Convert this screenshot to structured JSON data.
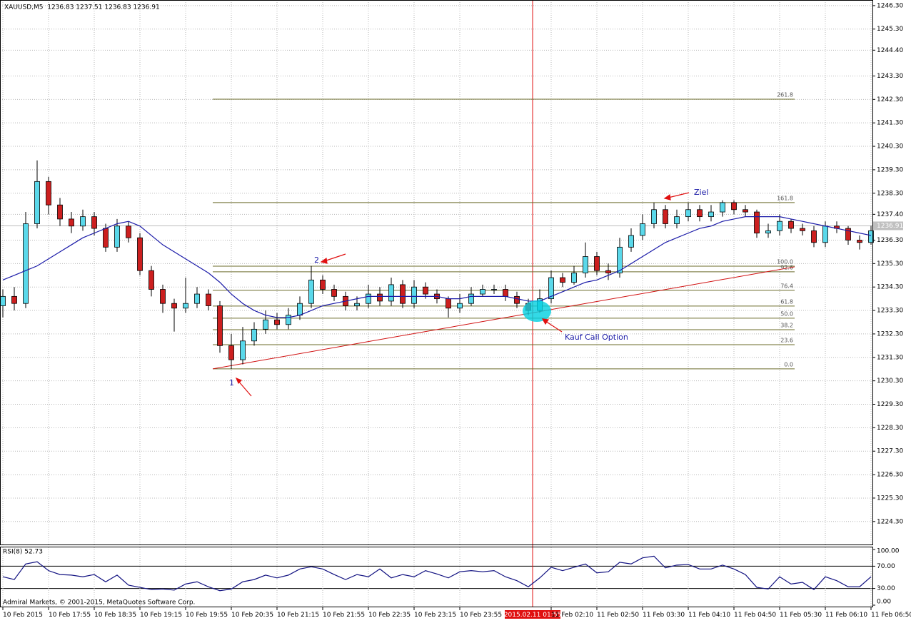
{
  "chart_data": {
    "type": "candlestick",
    "title": "XAUUSD,M5  1236.83 1237.51 1236.83 1236.91",
    "copyright": "Admiral Markets, © 2001-2015, MetaQuotes Software Corp.",
    "categories": [
      "10 Feb 2015",
      null,
      null,
      null,
      "10 Feb 17:55",
      null,
      null,
      null,
      "10 Feb 18:35",
      null,
      null,
      null,
      "10 Feb 19:15",
      null,
      null,
      null,
      "10 Feb 19:55",
      null,
      null,
      null,
      "10 Feb 20:35",
      null,
      null,
      null,
      "10 Feb 21:15",
      null,
      null,
      null,
      "10 Feb 21:55",
      null,
      null,
      null,
      "10 Feb 22:35",
      null,
      null,
      null,
      "10 Feb 23:15",
      null,
      null,
      null,
      "10 Feb 23:55",
      null,
      null,
      null,
      null,
      null,
      "2015.02.11 01:55",
      null,
      "11 Feb 02:10",
      null,
      null,
      null,
      "11 Feb 02:50",
      null,
      null,
      null,
      "11 Feb 03:30",
      null,
      null,
      null,
      "11 Feb 04:10",
      null,
      null,
      null,
      "11 Feb 04:50",
      null,
      null,
      null,
      "11 Feb 05:30",
      null,
      null,
      null,
      "11 Feb 06:10",
      null,
      null,
      null,
      "11 Feb 06:50"
    ],
    "crosshair": "2015.02.11 01:55",
    "open": [
      1233.5,
      1233.9,
      1233.6,
      1237.0,
      1238.8,
      1237.8,
      1237.2,
      1236.9,
      1237.3,
      1236.8,
      1236.0,
      1236.9,
      1236.4,
      1235.0,
      1234.2,
      1233.6,
      1233.4,
      1233.6,
      1234.0,
      1233.5,
      1231.8,
      1231.2,
      1232.0,
      1232.5,
      1232.9,
      1232.7,
      1233.1,
      1233.6,
      1234.6,
      1234.2,
      1233.9,
      1233.5,
      1233.6,
      1234.0,
      1233.7,
      1234.4,
      1233.6,
      1234.3,
      1234.0,
      1233.8,
      1233.4,
      1233.6,
      1234.0,
      1234.2,
      1234.2,
      1233.9,
      1233.6,
      1233.3,
      1233.8,
      1234.7,
      1234.5,
      1234.9,
      1235.6,
      1235.0,
      1234.9,
      1236.0,
      1236.5,
      1237.0,
      1237.6,
      1237.0,
      1237.3,
      1237.6,
      1237.3,
      1237.5,
      1237.9,
      1237.6,
      1237.5,
      1236.6,
      1236.7,
      1237.1,
      1236.8,
      1236.7,
      1236.2,
      1236.9,
      1236.8,
      1236.3,
      1236.2
    ],
    "high": [
      1234.2,
      1234.3,
      1237.5,
      1239.7,
      1239.0,
      1238.1,
      1237.5,
      1237.6,
      1237.5,
      1237.0,
      1237.2,
      1237.1,
      1236.6,
      1235.2,
      1234.4,
      1233.8,
      1234.7,
      1234.3,
      1234.2,
      1233.7,
      1232.3,
      1232.6,
      1232.8,
      1233.3,
      1233.2,
      1233.4,
      1233.9,
      1235.2,
      1234.8,
      1234.4,
      1234.1,
      1233.9,
      1234.4,
      1234.3,
      1234.7,
      1234.6,
      1234.6,
      1234.5,
      1234.2,
      1233.9,
      1234.0,
      1234.3,
      1234.4,
      1234.4,
      1234.4,
      1234.1,
      1233.8,
      1234.2,
      1235.0,
      1234.9,
      1235.2,
      1236.2,
      1235.8,
      1235.3,
      1236.4,
      1236.8,
      1237.4,
      1237.9,
      1237.8,
      1237.6,
      1237.9,
      1237.8,
      1237.8,
      1238.0,
      1238.0,
      1237.8,
      1237.6,
      1237.0,
      1237.4,
      1237.2,
      1237.0,
      1236.9,
      1237.1,
      1237.1,
      1236.9,
      1236.5,
      1236.9
    ],
    "low": [
      1233.0,
      1233.3,
      1233.4,
      1236.8,
      1237.4,
      1236.9,
      1236.6,
      1236.7,
      1236.5,
      1235.8,
      1235.8,
      1236.2,
      1234.8,
      1233.9,
      1233.2,
      1232.4,
      1233.2,
      1233.4,
      1233.3,
      1231.5,
      1230.8,
      1231.0,
      1231.8,
      1232.3,
      1232.5,
      1232.5,
      1232.9,
      1233.4,
      1234.0,
      1233.7,
      1233.3,
      1233.3,
      1233.4,
      1233.5,
      1233.5,
      1233.4,
      1233.4,
      1233.8,
      1233.6,
      1233.0,
      1233.2,
      1233.5,
      1233.9,
      1234.0,
      1233.7,
      1233.4,
      1233.1,
      1233.2,
      1233.6,
      1234.3,
      1234.4,
      1234.7,
      1234.8,
      1234.6,
      1234.7,
      1235.8,
      1236.3,
      1236.8,
      1236.8,
      1236.8,
      1237.1,
      1237.1,
      1237.1,
      1237.3,
      1237.4,
      1237.3,
      1236.4,
      1236.4,
      1236.5,
      1236.6,
      1236.5,
      1236.0,
      1236.0,
      1236.6,
      1236.1,
      1235.9,
      1236.1
    ],
    "close": [
      1233.9,
      1233.6,
      1237.0,
      1238.8,
      1237.8,
      1237.2,
      1236.9,
      1237.3,
      1236.8,
      1236.0,
      1236.9,
      1236.4,
      1235.0,
      1234.2,
      1233.6,
      1233.4,
      1233.6,
      1234.0,
      1233.5,
      1231.8,
      1231.2,
      1232.0,
      1232.5,
      1232.9,
      1232.7,
      1233.1,
      1233.6,
      1234.6,
      1234.2,
      1233.9,
      1233.5,
      1233.6,
      1234.0,
      1233.7,
      1234.4,
      1233.6,
      1234.3,
      1234.0,
      1233.8,
      1233.4,
      1233.6,
      1234.0,
      1234.2,
      1234.2,
      1233.9,
      1233.6,
      1233.3,
      1233.8,
      1234.7,
      1234.5,
      1234.9,
      1235.6,
      1235.0,
      1234.9,
      1236.0,
      1236.5,
      1237.0,
      1237.6,
      1237.0,
      1237.3,
      1237.6,
      1237.3,
      1237.5,
      1237.9,
      1237.6,
      1237.5,
      1236.6,
      1236.7,
      1237.1,
      1236.8,
      1236.7,
      1236.2,
      1236.9,
      1236.8,
      1236.3,
      1236.2,
      1236.7
    ],
    "up_color": "#5ad8ea",
    "down_color": "#cc1f1f",
    "ma": {
      "color": "#1a1aa8",
      "values": [
        1234.6,
        1234.8,
        1235.0,
        1235.2,
        1235.5,
        1235.8,
        1236.1,
        1236.4,
        1236.6,
        1236.8,
        1237.0,
        1237.1,
        1236.9,
        1236.5,
        1236.1,
        1235.8,
        1235.5,
        1235.2,
        1234.9,
        1234.5,
        1234.0,
        1233.6,
        1233.3,
        1233.1,
        1233.0,
        1233.0,
        1233.1,
        1233.3,
        1233.5,
        1233.6,
        1233.7,
        1233.8,
        1233.9,
        1233.9,
        1233.9,
        1233.9,
        1233.9,
        1233.9,
        1233.9,
        1233.8,
        1233.8,
        1233.9,
        1233.9,
        1233.9,
        1233.9,
        1233.8,
        1233.7,
        1233.7,
        1233.9,
        1234.1,
        1234.3,
        1234.5,
        1234.6,
        1234.8,
        1235.0,
        1235.3,
        1235.6,
        1235.9,
        1236.2,
        1236.4,
        1236.6,
        1236.8,
        1236.9,
        1237.1,
        1237.2,
        1237.3,
        1237.3,
        1237.3,
        1237.3,
        1237.2,
        1237.1,
        1237.0,
        1236.9,
        1236.8,
        1236.7,
        1236.6,
        1236.5
      ]
    },
    "last_price": 1236.91,
    "ylim": [
      1223.32,
      1246.54
    ],
    "yticks": [
      {
        "value": 1246.3,
        "label": "1246.30"
      },
      {
        "value": 1245.3,
        "label": "1245.30"
      },
      {
        "value": 1244.4,
        "label": "1244.40"
      },
      {
        "value": 1243.3,
        "label": "1243.30"
      },
      {
        "value": 1242.3,
        "label": "1242.30"
      },
      {
        "value": 1241.3,
        "label": "1241.30"
      },
      {
        "value": 1240.3,
        "label": "1240.30"
      },
      {
        "value": 1239.3,
        "label": "1239.30"
      },
      {
        "value": 1238.3,
        "label": "1238.30"
      },
      {
        "value": 1237.4,
        "label": "1237.40"
      },
      {
        "value": 1236.3,
        "label": "1236.30"
      },
      {
        "value": 1235.3,
        "label": "1235.30"
      },
      {
        "value": 1234.3,
        "label": "1234.30"
      },
      {
        "value": 1233.3,
        "label": "1233.30"
      },
      {
        "value": 1232.3,
        "label": "1232.30"
      },
      {
        "value": 1231.3,
        "label": "1231.30"
      },
      {
        "value": 1230.3,
        "label": "1230.30"
      },
      {
        "value": 1229.3,
        "label": "1229.30"
      },
      {
        "value": 1228.3,
        "label": "1228.30"
      },
      {
        "value": 1227.3,
        "label": "1227.30"
      },
      {
        "value": 1226.3,
        "label": "1226.30"
      },
      {
        "value": 1225.3,
        "label": "1225.30"
      },
      {
        "value": 1224.3,
        "label": "1224.30"
      }
    ],
    "fibonacci": [
      {
        "label": "261.8",
        "value": 1242.31
      },
      {
        "label": "161.8",
        "value": 1237.9
      },
      {
        "label": "100.0",
        "value": 1235.19
      },
      {
        "label": "92.6",
        "value": 1234.95
      },
      {
        "label": "76.4",
        "value": 1234.16
      },
      {
        "label": "61.8",
        "value": 1233.49
      },
      {
        "label": "50.0",
        "value": 1232.97
      },
      {
        "label": "38.2",
        "value": 1232.48
      },
      {
        "label": "23.6",
        "value": 1231.84
      },
      {
        "label": "0.0",
        "value": 1230.81
      }
    ],
    "trendline": [
      1230.81,
      1235.16
    ],
    "annotations": [
      "1",
      "2",
      "Ziel",
      "Kauf Call Option"
    ],
    "rsi": {
      "label": "RSI(8) 52.73",
      "color": "#101080",
      "values": [
        51,
        46,
        74,
        78,
        62,
        55,
        54,
        51,
        55,
        42,
        54,
        36,
        32,
        28,
        29,
        27,
        38,
        42,
        33,
        26,
        29,
        42,
        46,
        54,
        49,
        54,
        65,
        69,
        65,
        55,
        46,
        55,
        51,
        65,
        49,
        55,
        51,
        62,
        56,
        49,
        60,
        62,
        60,
        62,
        51,
        44,
        33,
        49,
        68,
        62,
        68,
        74,
        58,
        60,
        77,
        74,
        85,
        88,
        67,
        72,
        73,
        65,
        65,
        72,
        65,
        55,
        32,
        29,
        51,
        38,
        41,
        28,
        51,
        44,
        33,
        33,
        51
      ],
      "ylim": [
        0,
        100
      ],
      "yticks": [
        {
          "value": 100,
          "label": "100.00"
        },
        {
          "value": 70,
          "label": "70.00"
        },
        {
          "value": 30,
          "label": "30.00"
        },
        {
          "value": 0,
          "label": "0.00"
        }
      ],
      "levels": [
        70,
        30
      ]
    }
  }
}
